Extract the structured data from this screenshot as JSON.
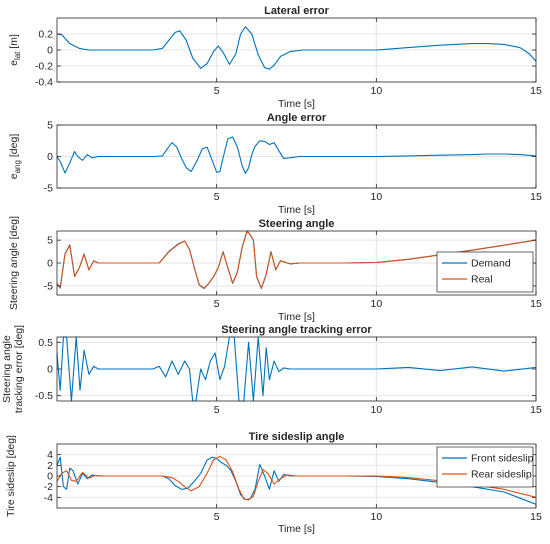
{
  "figure": {
    "colors": {
      "blue": "#0072BD",
      "orange": "#D95319",
      "axis": "#262626",
      "grid": "#e4e4e4"
    }
  },
  "chart_data": [
    {
      "type": "line",
      "title": "Lateral error",
      "xlabel": "Time [s]",
      "ylabel": "e_lat [m]",
      "ylabel_main": "e",
      "ylabel_sub": "lat",
      "ylabel_unit": " [m]",
      "xlim": [
        0,
        15
      ],
      "ylim": [
        -0.4,
        0.4
      ],
      "xticks": [
        5,
        10,
        15
      ],
      "xtick_labels": [
        "5",
        "10",
        "15"
      ],
      "yticks": [
        -0.4,
        -0.2,
        0,
        0.2
      ],
      "ytick_labels": [
        "-0.4",
        "-0.2",
        "0",
        "0.2"
      ],
      "grid": true,
      "legend": null,
      "series": [
        {
          "color": "#0072BD",
          "x": [
            0,
            0.15,
            0.4,
            0.7,
            1,
            1.5,
            2,
            2.5,
            3,
            3.3,
            3.5,
            3.7,
            3.85,
            4.05,
            4.25,
            4.5,
            4.7,
            4.9,
            5.05,
            5.2,
            5.4,
            5.6,
            5.75,
            5.9,
            6.1,
            6.3,
            6.5,
            6.65,
            6.8,
            7,
            7.3,
            7.7,
            8.2,
            9,
            10,
            11,
            12,
            13,
            13.5,
            14,
            14.5,
            14.8,
            15
          ],
          "y": [
            0.2,
            0.19,
            0.08,
            0.02,
            0,
            0,
            0,
            0,
            0,
            0.02,
            0.12,
            0.22,
            0.24,
            0.12,
            -0.1,
            -0.23,
            -0.17,
            -0.02,
            0.05,
            -0.03,
            -0.18,
            -0.05,
            0.2,
            0.29,
            0.2,
            -0.06,
            -0.22,
            -0.24,
            -0.19,
            -0.08,
            -0.02,
            0,
            0,
            0,
            0,
            0.03,
            0.06,
            0.08,
            0.08,
            0.07,
            0.03,
            -0.05,
            -0.14
          ]
        }
      ]
    },
    {
      "type": "line",
      "title": "Angle error",
      "xlabel": "Time [s]",
      "ylabel": "e_ang [deg]",
      "ylabel_main": "e",
      "ylabel_sub": "ang",
      "ylabel_unit": " [deg]",
      "xlim": [
        0,
        15
      ],
      "ylim": [
        -5,
        5
      ],
      "xticks": [
        5,
        10,
        15
      ],
      "xtick_labels": [
        "5",
        "10",
        "15"
      ],
      "yticks": [
        -5,
        0,
        5
      ],
      "ytick_labels": [
        "-5",
        "0",
        "5"
      ],
      "grid": true,
      "legend": null,
      "series": [
        {
          "color": "#0072BD",
          "x": [
            0,
            0.1,
            0.25,
            0.4,
            0.55,
            0.65,
            0.8,
            0.95,
            1.1,
            1.3,
            1.6,
            2,
            2.5,
            3,
            3.3,
            3.45,
            3.6,
            3.75,
            3.9,
            4.05,
            4.2,
            4.4,
            4.55,
            4.7,
            4.85,
            5,
            5.1,
            5.2,
            5.35,
            5.5,
            5.65,
            5.8,
            5.9,
            6,
            6.1,
            6.2,
            6.35,
            6.5,
            6.65,
            6.8,
            6.95,
            7.1,
            7.3,
            7.6,
            8,
            9,
            10,
            11,
            12,
            13,
            13.5,
            14,
            14.5,
            15
          ],
          "y": [
            0,
            -0.8,
            -2.6,
            -1,
            0.8,
            0,
            -0.6,
            0.3,
            -0.2,
            0,
            0,
            0,
            0,
            0,
            0.1,
            1.2,
            2.2,
            1.5,
            -0.3,
            -1.8,
            -2.4,
            -0.5,
            1.2,
            1.5,
            -0.5,
            -2.5,
            -2.4,
            -0.2,
            2.8,
            3.1,
            1.5,
            -1.5,
            -2.7,
            -1.8,
            0.3,
            1.6,
            2.5,
            2.4,
            1.9,
            2.2,
            0.9,
            -0.3,
            -0.2,
            0,
            0,
            0,
            0,
            0.1,
            0.2,
            0.3,
            0.4,
            0.4,
            0.3,
            0.1
          ]
        }
      ]
    },
    {
      "type": "line",
      "title": "Steering angle",
      "xlabel": "Time [s]",
      "ylabel": "Steering angle [deg]",
      "xlim": [
        0,
        15
      ],
      "ylim": [
        -7,
        7
      ],
      "xticks": [
        5,
        10,
        15
      ],
      "xtick_labels": [
        "5",
        "10",
        "15"
      ],
      "yticks": [
        -5,
        0,
        5
      ],
      "ytick_labels": [
        "-5",
        "0",
        "5"
      ],
      "grid": true,
      "legend": "bottom-right",
      "series": [
        {
          "name": "Demand",
          "color": "#0072BD",
          "x": [
            0,
            0.1,
            0.25,
            0.4,
            0.55,
            0.7,
            0.85,
            1,
            1.15,
            1.3,
            1.6,
            2,
            2.5,
            3,
            3.2,
            3.5,
            3.8,
            4,
            4.15,
            4.3,
            4.45,
            4.6,
            4.75,
            4.9,
            5.05,
            5.2,
            5.35,
            5.5,
            5.65,
            5.8,
            5.95,
            6.05,
            6.15,
            6.25,
            6.4,
            6.55,
            6.7,
            6.85,
            7,
            7.3,
            7.6,
            8,
            9,
            10,
            11,
            12,
            13,
            14,
            15
          ],
          "y": [
            -4.5,
            -5.5,
            2,
            4,
            -3,
            -1,
            2,
            -1.5,
            0.5,
            0,
            0,
            0,
            0,
            0,
            0,
            2.5,
            4.2,
            4.8,
            3,
            -1,
            -4.8,
            -5.6,
            -4.5,
            -3,
            -1,
            2.5,
            -1,
            -4.5,
            -2,
            3.5,
            7,
            6.2,
            5,
            -3,
            -5.6,
            -2.5,
            2.5,
            -1.5,
            0.5,
            -0.2,
            0,
            0,
            0,
            0.1,
            0.8,
            1.8,
            2.8,
            3.9,
            5
          ]
        },
        {
          "name": "Real",
          "color": "#D95319",
          "x": [
            0,
            0.1,
            0.25,
            0.4,
            0.55,
            0.7,
            0.85,
            1,
            1.15,
            1.3,
            1.6,
            2,
            2.5,
            3,
            3.2,
            3.5,
            3.8,
            4,
            4.15,
            4.3,
            4.45,
            4.6,
            4.75,
            4.9,
            5.05,
            5.2,
            5.35,
            5.5,
            5.65,
            5.8,
            5.95,
            6.05,
            6.15,
            6.25,
            6.4,
            6.55,
            6.7,
            6.85,
            7,
            7.3,
            7.6,
            8,
            9,
            10,
            11,
            12,
            13,
            14,
            15
          ],
          "y": [
            -4.5,
            -5.4,
            1.9,
            3.9,
            -2.9,
            -1,
            1.9,
            -1.5,
            0.5,
            0,
            0,
            0,
            0,
            0,
            0,
            2.4,
            4.1,
            4.8,
            3,
            -1,
            -4.7,
            -5.5,
            -4.5,
            -3,
            -1,
            2.4,
            -1,
            -4.4,
            -2,
            3.4,
            6.9,
            6.2,
            5,
            -3,
            -5.5,
            -2.5,
            2.4,
            -1.5,
            0.5,
            -0.2,
            0,
            0,
            0,
            0.1,
            0.8,
            1.8,
            2.8,
            3.9,
            5
          ]
        }
      ]
    },
    {
      "type": "line",
      "title": "Steering angle tracking error",
      "xlabel": "",
      "ylabel": "Steering angle tracking error [deg]",
      "ylabel_line1": "Steering angle",
      "ylabel_line2": "tracking error [deg]",
      "xlim": [
        0,
        15
      ],
      "ylim": [
        -0.6,
        0.6
      ],
      "xticks": [
        5,
        10,
        15
      ],
      "xtick_labels": [
        "5",
        "10",
        "15"
      ],
      "yticks": [
        -0.5,
        0,
        0.5
      ],
      "ytick_labels": [
        "-0.5",
        "0",
        "0.5"
      ],
      "grid": true,
      "legend": null,
      "series": [
        {
          "color": "#0072BD",
          "x": [
            0,
            0.1,
            0.2,
            0.3,
            0.45,
            0.6,
            0.72,
            0.85,
            1,
            1.15,
            1.3,
            1.6,
            2,
            2.5,
            3,
            3.2,
            3.4,
            3.6,
            3.8,
            4,
            4.15,
            4.25,
            4.35,
            4.5,
            4.65,
            4.8,
            4.95,
            5.1,
            5.25,
            5.4,
            5.55,
            5.7,
            5.85,
            6,
            6.15,
            6.3,
            6.45,
            6.55,
            6.65,
            6.8,
            6.95,
            7.1,
            7.3,
            7.6,
            8,
            9,
            10,
            11,
            12,
            13,
            14,
            15
          ],
          "y": [
            0.3,
            -0.4,
            0.6,
            0.6,
            -0.6,
            0.6,
            -0.4,
            0.35,
            -0.1,
            0.05,
            0,
            0,
            0,
            0,
            0,
            0.05,
            -0.15,
            0.15,
            -0.1,
            0.15,
            0,
            -0.6,
            -0.6,
            0,
            -0.2,
            0.15,
            0.3,
            -0.2,
            0.05,
            0.6,
            0.6,
            -0.6,
            -0.6,
            0.5,
            -0.6,
            0.6,
            -0.5,
            0.4,
            -0.2,
            0.15,
            -0.05,
            0.02,
            0,
            0,
            0,
            0,
            0,
            0.03,
            -0.03,
            0.04,
            -0.04,
            0.03
          ]
        }
      ]
    },
    {
      "type": "line",
      "title": "Tire sideslip angle",
      "xlabel": "Time [s]",
      "ylabel": "Tire sideslip [deg]",
      "xlim": [
        0,
        15
      ],
      "ylim": [
        -6,
        6
      ],
      "xticks": [
        5,
        10,
        15
      ],
      "xtick_labels": [
        "5",
        "10",
        "15"
      ],
      "yticks": [
        -4,
        -2,
        0,
        2,
        4
      ],
      "ytick_labels": [
        "-4",
        "-2",
        "0",
        "2",
        "4"
      ],
      "grid": true,
      "legend": "top-right",
      "series": [
        {
          "name": "Front sideslip",
          "color": "#0072BD",
          "x": [
            0,
            0.1,
            0.2,
            0.3,
            0.4,
            0.5,
            0.65,
            0.8,
            0.95,
            1.1,
            1.3,
            1.6,
            2,
            2.5,
            3,
            3.3,
            3.5,
            3.7,
            3.9,
            4.1,
            4.3,
            4.5,
            4.7,
            4.85,
            5,
            5.15,
            5.3,
            5.45,
            5.6,
            5.75,
            5.9,
            6.05,
            6.2,
            6.35,
            6.5,
            6.65,
            6.8,
            6.95,
            7.1,
            7.3,
            7.6,
            8,
            9,
            10,
            11,
            12,
            13,
            14,
            15
          ],
          "y": [
            2,
            3.5,
            -2,
            -2.5,
            1.5,
            1,
            -1.5,
            0.5,
            -0.5,
            0.2,
            0,
            0,
            0,
            0,
            0,
            0,
            -0.5,
            -1.8,
            -2.5,
            -2.3,
            -1,
            0.5,
            3,
            3.5,
            3.3,
            2.5,
            2,
            1,
            -1,
            -3.5,
            -4.4,
            -4.3,
            -2.5,
            2.2,
            0,
            -2.5,
            1,
            -1,
            0.3,
            0,
            0,
            0,
            0,
            -0.1,
            -0.5,
            -1.2,
            -2,
            -3,
            -5.3
          ]
        },
        {
          "name": "Rear sideslip",
          "color": "#D95319",
          "x": [
            0,
            0.15,
            0.3,
            0.45,
            0.6,
            0.8,
            1,
            1.2,
            1.5,
            2,
            2.5,
            3,
            3.3,
            3.6,
            3.8,
            4,
            4.2,
            4.45,
            4.7,
            4.9,
            5.1,
            5.3,
            5.5,
            5.7,
            5.85,
            6,
            6.15,
            6.3,
            6.45,
            6.6,
            6.8,
            7,
            7.2,
            7.5,
            8,
            9,
            10,
            11,
            12,
            13,
            14,
            15
          ],
          "y": [
            -1,
            0.5,
            1,
            -0.8,
            -1,
            0.7,
            -0.4,
            0.1,
            0,
            0,
            0,
            0,
            0,
            -0.3,
            -1,
            -2,
            -2.8,
            -2,
            0.5,
            3,
            3.7,
            3,
            0.8,
            -2.5,
            -4.3,
            -4.5,
            -3.8,
            -1,
            1.2,
            0.5,
            -1.5,
            -0.5,
            0.2,
            0,
            0,
            0,
            0,
            -0.3,
            -0.9,
            -1.6,
            -2.5,
            -4
          ]
        }
      ]
    }
  ]
}
